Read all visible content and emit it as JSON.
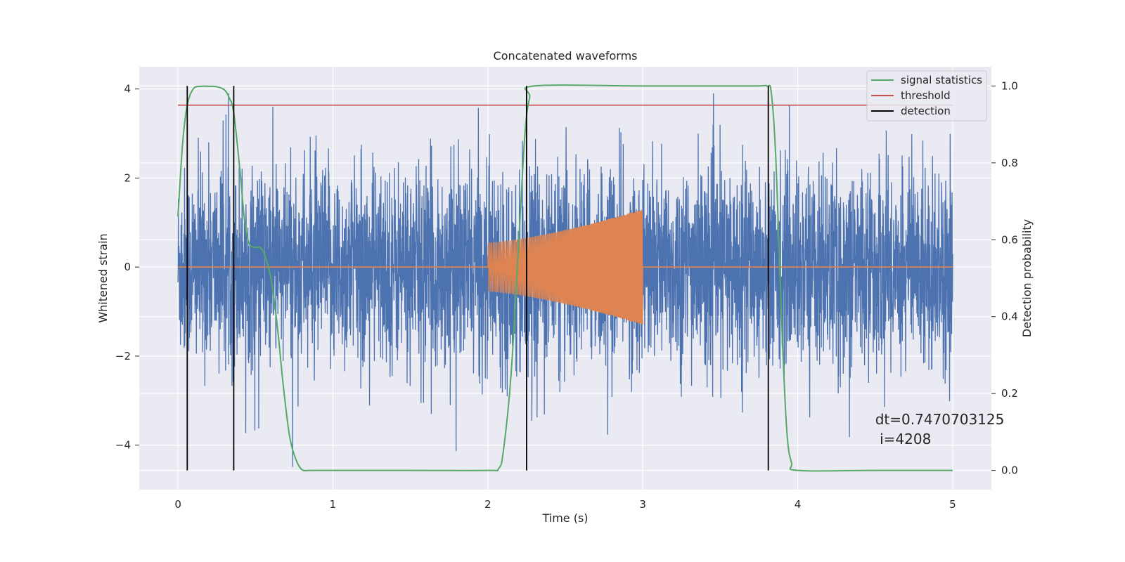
{
  "chart_data": {
    "type": "line",
    "title": "Concatenated waveforms",
    "xlabel": "Time (s)",
    "ylabel": "Whitened strain",
    "y2label": "Detection probability",
    "xlim": [
      -0.25,
      5.25
    ],
    "ylim": [
      -5.0,
      4.5
    ],
    "y2lim": [
      -0.05,
      1.05
    ],
    "xticks": [
      0,
      1,
      2,
      3,
      4,
      5
    ],
    "xtick_labels": [
      "0",
      "1",
      "2",
      "3",
      "4",
      "5"
    ],
    "yticks": [
      -4,
      -2,
      0,
      2,
      4
    ],
    "ytick_labels": [
      "−4",
      "−2",
      "0",
      "2",
      "4"
    ],
    "y2ticks": [
      0.0,
      0.2,
      0.4,
      0.6,
      0.8,
      1.0
    ],
    "y2tick_labels": [
      "0.0",
      "0.2",
      "0.4",
      "0.6",
      "0.8",
      "1.0"
    ],
    "grid": true,
    "legend_position": "top-right",
    "colors": {
      "background": "#eaeaf2",
      "grid": "#ffffff",
      "noise": "#4c72b0",
      "chirp": "#dd8452",
      "stat": "#55a868",
      "threshold": "#c44e52",
      "detection": "#000000"
    },
    "series": [
      {
        "name": "",
        "color": "#4c72b0",
        "description_hidden": true,
        "x_range": [
          0.0,
          5.0
        ],
        "approx_spread": 1.1
      },
      {
        "name": "",
        "color": "#dd8452",
        "x_range": [
          2.0,
          3.0
        ],
        "amp_start": 0.55,
        "amp_end": 1.3
      },
      {
        "name": "signal statistics",
        "color": "#55a868",
        "axis": "right",
        "x": [
          0.0,
          0.03,
          0.06,
          0.1,
          0.15,
          0.2,
          0.25,
          0.3,
          0.33,
          0.36,
          0.4,
          0.43,
          0.46,
          0.5,
          0.53,
          0.56,
          0.6,
          0.64,
          0.68,
          0.72,
          0.76,
          0.8,
          0.85,
          0.9,
          1.5,
          2.0,
          2.07,
          2.1,
          2.15,
          2.2,
          2.24,
          2.27,
          2.3,
          3.0,
          3.7,
          3.8,
          3.83,
          3.86,
          3.9,
          3.93,
          3.96,
          4.0,
          4.5,
          5.0
        ],
        "y": [
          0.66,
          0.85,
          0.95,
          0.993,
          0.999,
          0.999,
          0.998,
          0.99,
          0.97,
          0.93,
          0.78,
          0.65,
          0.59,
          0.58,
          0.58,
          0.56,
          0.5,
          0.38,
          0.22,
          0.09,
          0.03,
          0.002,
          0.0,
          0.0,
          0.0,
          0.0,
          0.005,
          0.05,
          0.25,
          0.6,
          0.88,
          0.97,
          1.0,
          1.0,
          1.0,
          1.0,
          0.98,
          0.8,
          0.35,
          0.1,
          0.02,
          0.0,
          0.0,
          0.0
        ]
      },
      {
        "name": "threshold",
        "color": "#c44e52",
        "axis": "right",
        "x": [
          0.0,
          5.0
        ],
        "y": [
          0.95,
          0.95
        ]
      },
      {
        "name": "detection",
        "color": "#000000",
        "axis": "right",
        "type": "vlines",
        "x": [
          0.06,
          0.36,
          2.25,
          3.81
        ],
        "ymin": 0.0,
        "ymax": 1.0
      }
    ],
    "annotation": {
      "line1": "dt=0.7470703125",
      "line2": " i=4208",
      "x": 4.5,
      "y": 0.12
    }
  }
}
